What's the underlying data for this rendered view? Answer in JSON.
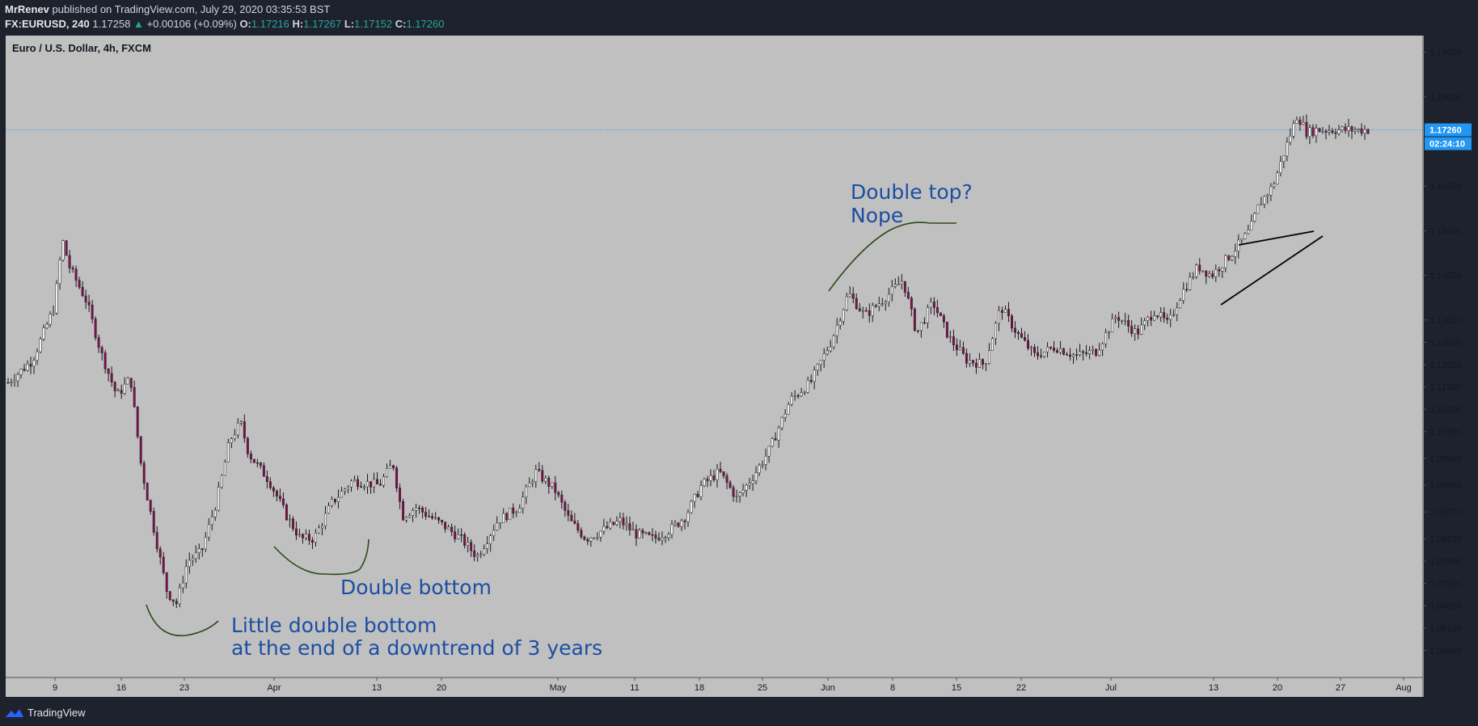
{
  "header": {
    "author": "MrRenev",
    "published_text": "published on TradingView.com, July 29, 2020 03:35:53 BST",
    "symbol": "FX:EURUSD, 240",
    "last_price": "1.17258",
    "arrow": "▲",
    "change": "+0.00106 (+0.09%)",
    "o_label": "O:",
    "o_value": "1.17216",
    "h_label": "H:",
    "h_value": "1.17267",
    "l_label": "L:",
    "l_value": "1.17152",
    "c_label": "C:",
    "c_value": "1.17260"
  },
  "footer": {
    "brand": "TradingView"
  },
  "colors": {
    "chart_bg": "#c0c0c0",
    "frame_bg": "#1e222d",
    "up_candle": "#26a69a",
    "down_candle": "#880e4f",
    "price_line": "#2196f3",
    "annotation_text": "#1c4ea3",
    "curve": "#2d4a1a",
    "trendline": "#000000"
  },
  "chart_data": {
    "type": "candlestick",
    "title": "Euro / U.S. Dollar, 4h, FXCM",
    "ylim": [
      1.051,
      1.193
    ],
    "y_ticks": [
      "1.19000",
      "1.18000",
      "1.17000",
      "1.16000",
      "1.15000",
      "1.14000",
      "1.13000",
      "1.12500",
      "1.12000",
      "1.11500",
      "1.11000",
      "1.10500",
      "1.09900",
      "1.09300",
      "1.08700",
      "1.08100",
      "1.07600",
      "1.07100",
      "1.06600",
      "1.06100",
      "1.05600"
    ],
    "x_ticks": [
      "9",
      "16",
      "23",
      "Apr",
      "13",
      "20",
      "May",
      "11",
      "18",
      "25",
      "Jun",
      "8",
      "15",
      "22",
      "Jul",
      "13",
      "20",
      "27",
      "Aug"
    ],
    "current_price_label": "1.17260",
    "countdown_label": "02:24:10",
    "current_price": 1.1726,
    "price_path": [
      [
        0,
        1.116
      ],
      [
        0.018,
        1.121
      ],
      [
        0.034,
        1.133
      ],
      [
        0.04,
        1.148
      ],
      [
        0.045,
        1.142
      ],
      [
        0.058,
        1.134
      ],
      [
        0.068,
        1.123
      ],
      [
        0.08,
        1.113
      ],
      [
        0.09,
        1.117
      ],
      [
        0.098,
        1.097
      ],
      [
        0.108,
        1.082
      ],
      [
        0.117,
        1.069
      ],
      [
        0.124,
        1.0665
      ],
      [
        0.132,
        1.076
      ],
      [
        0.142,
        1.078
      ],
      [
        0.153,
        1.089
      ],
      [
        0.163,
        1.103
      ],
      [
        0.171,
        1.107
      ],
      [
        0.177,
        1.1
      ],
      [
        0.192,
        1.094
      ],
      [
        0.205,
        1.086
      ],
      [
        0.215,
        1.081
      ],
      [
        0.225,
        1.081
      ],
      [
        0.238,
        1.089
      ],
      [
        0.253,
        1.094
      ],
      [
        0.273,
        1.093
      ],
      [
        0.283,
        1.098
      ],
      [
        0.29,
        1.086
      ],
      [
        0.3,
        1.088
      ],
      [
        0.32,
        1.084
      ],
      [
        0.333,
        1.081
      ],
      [
        0.345,
        1.077
      ],
      [
        0.36,
        1.085
      ],
      [
        0.375,
        1.088
      ],
      [
        0.388,
        1.096
      ],
      [
        0.402,
        1.092
      ],
      [
        0.413,
        1.085
      ],
      [
        0.425,
        1.081
      ],
      [
        0.438,
        1.083
      ],
      [
        0.45,
        1.085
      ],
      [
        0.462,
        1.082
      ],
      [
        0.475,
        1.081
      ],
      [
        0.487,
        1.083
      ],
      [
        0.498,
        1.086
      ],
      [
        0.51,
        1.093
      ],
      [
        0.523,
        1.096
      ],
      [
        0.536,
        1.09
      ],
      [
        0.548,
        1.095
      ],
      [
        0.56,
        1.101
      ],
      [
        0.575,
        1.112
      ],
      [
        0.59,
        1.116
      ],
      [
        0.605,
        1.125
      ],
      [
        0.618,
        1.136
      ],
      [
        0.63,
        1.131
      ],
      [
        0.645,
        1.135
      ],
      [
        0.658,
        1.139
      ],
      [
        0.668,
        1.127
      ],
      [
        0.68,
        1.134
      ],
      [
        0.692,
        1.126
      ],
      [
        0.705,
        1.121
      ],
      [
        0.718,
        1.12
      ],
      [
        0.73,
        1.133
      ],
      [
        0.742,
        1.127
      ],
      [
        0.755,
        1.122
      ],
      [
        0.77,
        1.124
      ],
      [
        0.785,
        1.122
      ],
      [
        0.8,
        1.123
      ],
      [
        0.815,
        1.131
      ],
      [
        0.83,
        1.127
      ],
      [
        0.843,
        1.132
      ],
      [
        0.853,
        1.129
      ],
      [
        0.863,
        1.136
      ],
      [
        0.875,
        1.142
      ],
      [
        0.885,
        1.14
      ],
      [
        0.9,
        1.145
      ],
      [
        0.913,
        1.15
      ],
      [
        0.92,
        1.156
      ],
      [
        0.93,
        1.16
      ],
      [
        0.94,
        1.169
      ],
      [
        0.948,
        1.176
      ],
      [
        0.955,
        1.172
      ],
      [
        0.962,
        1.1726
      ]
    ],
    "annotations": [
      {
        "lines": [
          "Little double bottom",
          "at the end of a downtrend of 3 years"
        ]
      },
      {
        "lines": [
          "Double bottom"
        ]
      },
      {
        "lines": [
          "Double top?",
          "Nope"
        ]
      }
    ]
  }
}
